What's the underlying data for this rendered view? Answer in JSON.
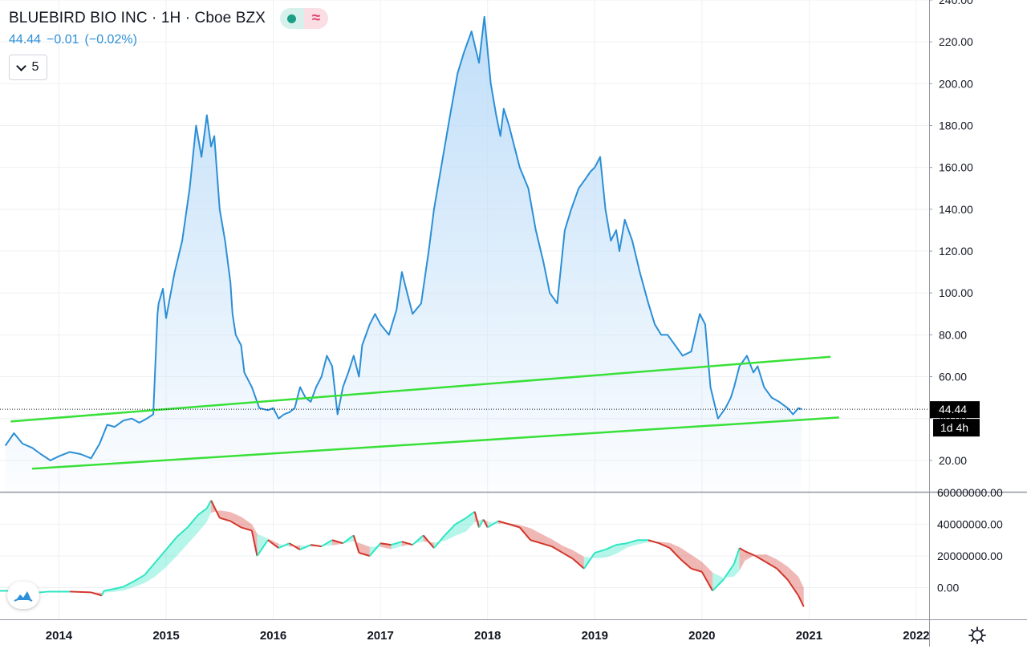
{
  "header": {
    "title": "BLUEBIRD BIO INC · 1H · Cboe BZX",
    "last_price": "44.44",
    "change": "−0.01",
    "change_pct": "(−0.02%)",
    "collapse_count": "5"
  },
  "colors": {
    "price_line": "#2b8fd6",
    "area_fill": "#cfe6fb",
    "trend_line": "#38e038",
    "indicator_up": "#2ee6c2",
    "indicator_down": "#d2352a",
    "axis_text": "#131722",
    "grid": "#eef0f3",
    "badge_bg": "#000000"
  },
  "chart_data": [
    {
      "type": "line",
      "series": [
        {
          "x": [
            2013.5,
            2013.58,
            2013.66,
            2013.75,
            2013.83,
            2013.92,
            2014.0,
            2014.1,
            2014.2,
            2014.3,
            2014.38,
            2014.45,
            2014.52,
            2014.6,
            2014.68,
            2014.75,
            2014.82,
            2014.88,
            2014.92,
            2014.93,
            2014.97,
            2015.0,
            2015.08,
            2015.15,
            2015.22,
            2015.28,
            2015.33,
            2015.38,
            2015.42,
            2015.45,
            2015.5,
            2015.55,
            2015.6,
            2015.62,
            2015.65,
            2015.7,
            2015.73,
            2015.8,
            2015.87,
            2015.95,
            2016.0,
            2016.05,
            2016.1,
            2016.15,
            2016.2,
            2016.25,
            2016.3,
            2016.35,
            2016.4,
            2016.45,
            2016.5,
            2016.55,
            2016.6,
            2016.65,
            2016.7,
            2016.75,
            2016.8,
            2016.83,
            2016.9,
            2016.95,
            2017.0,
            2017.08,
            2017.15,
            2017.2,
            2017.25,
            2017.3,
            2017.38,
            2017.45,
            2017.5,
            2017.55,
            2017.6,
            2017.65,
            2017.72,
            2017.78,
            2017.85,
            2017.92,
            2017.97,
            2018.03,
            2018.08,
            2018.12,
            2018.15,
            2018.2,
            2018.25,
            2018.3,
            2018.38,
            2018.45,
            2018.52,
            2018.58,
            2018.65,
            2018.72,
            2018.78,
            2018.85,
            2018.92,
            2018.96,
            2019.0,
            2019.05,
            2019.1,
            2019.15,
            2019.2,
            2019.23,
            2019.28,
            2019.35,
            2019.42,
            2019.5,
            2019.56,
            2019.62,
            2019.68,
            2019.75,
            2019.82,
            2019.9,
            2019.98,
            2020.03,
            2020.08,
            2020.15,
            2020.22,
            2020.27,
            2020.3,
            2020.35,
            2020.42,
            2020.48,
            2020.52,
            2020.58,
            2020.65,
            2020.72,
            2020.8,
            2020.85,
            2020.9,
            2020.93
          ],
          "values": [
            27,
            33,
            28,
            26,
            23,
            20,
            22,
            24,
            23,
            21,
            28,
            37,
            36,
            39,
            40,
            38,
            40,
            42,
            90,
            95,
            102,
            88,
            110,
            125,
            150,
            180,
            165,
            185,
            170,
            175,
            140,
            125,
            105,
            90,
            80,
            75,
            62,
            55,
            45,
            44,
            45,
            40,
            42,
            43,
            45,
            55,
            50,
            48,
            55,
            60,
            70,
            65,
            42,
            55,
            62,
            70,
            60,
            75,
            85,
            90,
            85,
            80,
            92,
            110,
            100,
            90,
            95,
            120,
            140,
            155,
            170,
            185,
            205,
            215,
            225,
            210,
            232,
            200,
            185,
            175,
            188,
            180,
            170,
            160,
            150,
            130,
            115,
            100,
            95,
            130,
            140,
            150,
            155,
            158,
            160,
            165,
            140,
            125,
            130,
            120,
            135,
            125,
            110,
            95,
            85,
            80,
            80,
            75,
            70,
            72,
            90,
            85,
            55,
            40,
            45,
            50,
            55,
            65,
            70,
            62,
            65,
            55,
            50,
            48,
            45,
            42,
            45,
            44.44
          ],
          "fill": "area"
        }
      ],
      "trendlines": [
        {
          "x": [
            2013.55,
            2021.2
          ],
          "y": [
            38.6,
            69.5
          ]
        },
        {
          "x": [
            2013.75,
            2021.28
          ],
          "y": [
            16,
            40.5
          ]
        }
      ],
      "xlim": [
        2013.45,
        2022.12
      ],
      "ylim": [
        5,
        240
      ],
      "y_ticks": [
        "20.00",
        "40.00",
        "60.00",
        "80.00",
        "100.00",
        "120.00",
        "140.00",
        "160.00",
        "180.00",
        "200.00",
        "220.00",
        "240.00"
      ],
      "last_value_label": "44.44",
      "countdown_label": "1d 4h",
      "grid": true
    },
    {
      "type": "area",
      "series": [
        {
          "x": [
            2013.45,
            2013.6,
            2013.75,
            2013.9,
            2014.1,
            2014.3,
            2014.4,
            2014.42,
            2014.5,
            2014.6,
            2014.7,
            2014.8,
            2014.9,
            2015.0,
            2015.1,
            2015.2,
            2015.3,
            2015.38,
            2015.42,
            2015.5,
            2015.6,
            2015.7,
            2015.8,
            2015.85,
            2015.95,
            2016.05,
            2016.15,
            2016.25,
            2016.35,
            2016.45,
            2016.55,
            2016.65,
            2016.75,
            2016.8,
            2016.9,
            2017.0,
            2017.1,
            2017.2,
            2017.3,
            2017.4,
            2017.5,
            2017.6,
            2017.7,
            2017.8,
            2017.88,
            2017.92,
            2017.96,
            2018.0,
            2018.1,
            2018.2,
            2018.3,
            2018.4,
            2018.5,
            2018.6,
            2018.7,
            2018.8,
            2018.9,
            2019.0,
            2019.1,
            2019.2,
            2019.3,
            2019.4,
            2019.5,
            2019.6,
            2019.7,
            2019.8,
            2019.9,
            2020.0,
            2020.1,
            2020.2,
            2020.3,
            2020.35,
            2020.4,
            2020.5,
            2020.6,
            2020.7,
            2020.8,
            2020.9,
            2020.95
          ],
          "values": [
            -2000000,
            -2000000,
            -3500000,
            -2500000,
            -2500000,
            -3000000,
            -5000000,
            -2000000,
            -1000000,
            500000,
            4000000,
            8000000,
            16000000,
            24000000,
            32000000,
            38000000,
            46000000,
            50000000,
            55000000,
            44000000,
            42000000,
            38000000,
            36000000,
            20000000,
            30000000,
            25000000,
            28000000,
            24000000,
            27000000,
            26000000,
            30000000,
            28000000,
            33000000,
            22000000,
            20000000,
            28000000,
            27000000,
            29000000,
            27000000,
            33000000,
            25000000,
            33000000,
            40000000,
            44000000,
            48000000,
            38000000,
            43000000,
            38000000,
            42000000,
            40000000,
            38000000,
            30000000,
            28000000,
            26000000,
            22000000,
            18000000,
            12000000,
            22000000,
            24000000,
            27000000,
            28000000,
            30000000,
            30000000,
            28000000,
            25000000,
            18000000,
            12000000,
            10000000,
            -2000000,
            5000000,
            15000000,
            25000000,
            23000000,
            20000000,
            16000000,
            12000000,
            5000000,
            -5000000,
            -12000000
          ],
          "fill": "cloud"
        }
      ],
      "xlim": [
        2013.45,
        2022.12
      ],
      "ylim": [
        -20000000,
        60000000
      ],
      "y_ticks": [
        "0.00",
        "20000000.00",
        "40000000.00",
        "60000000.00"
      ],
      "x_ticks": [
        "2014",
        "2015",
        "2016",
        "2017",
        "2018",
        "2019",
        "2020",
        "2021",
        "2022"
      ]
    }
  ]
}
